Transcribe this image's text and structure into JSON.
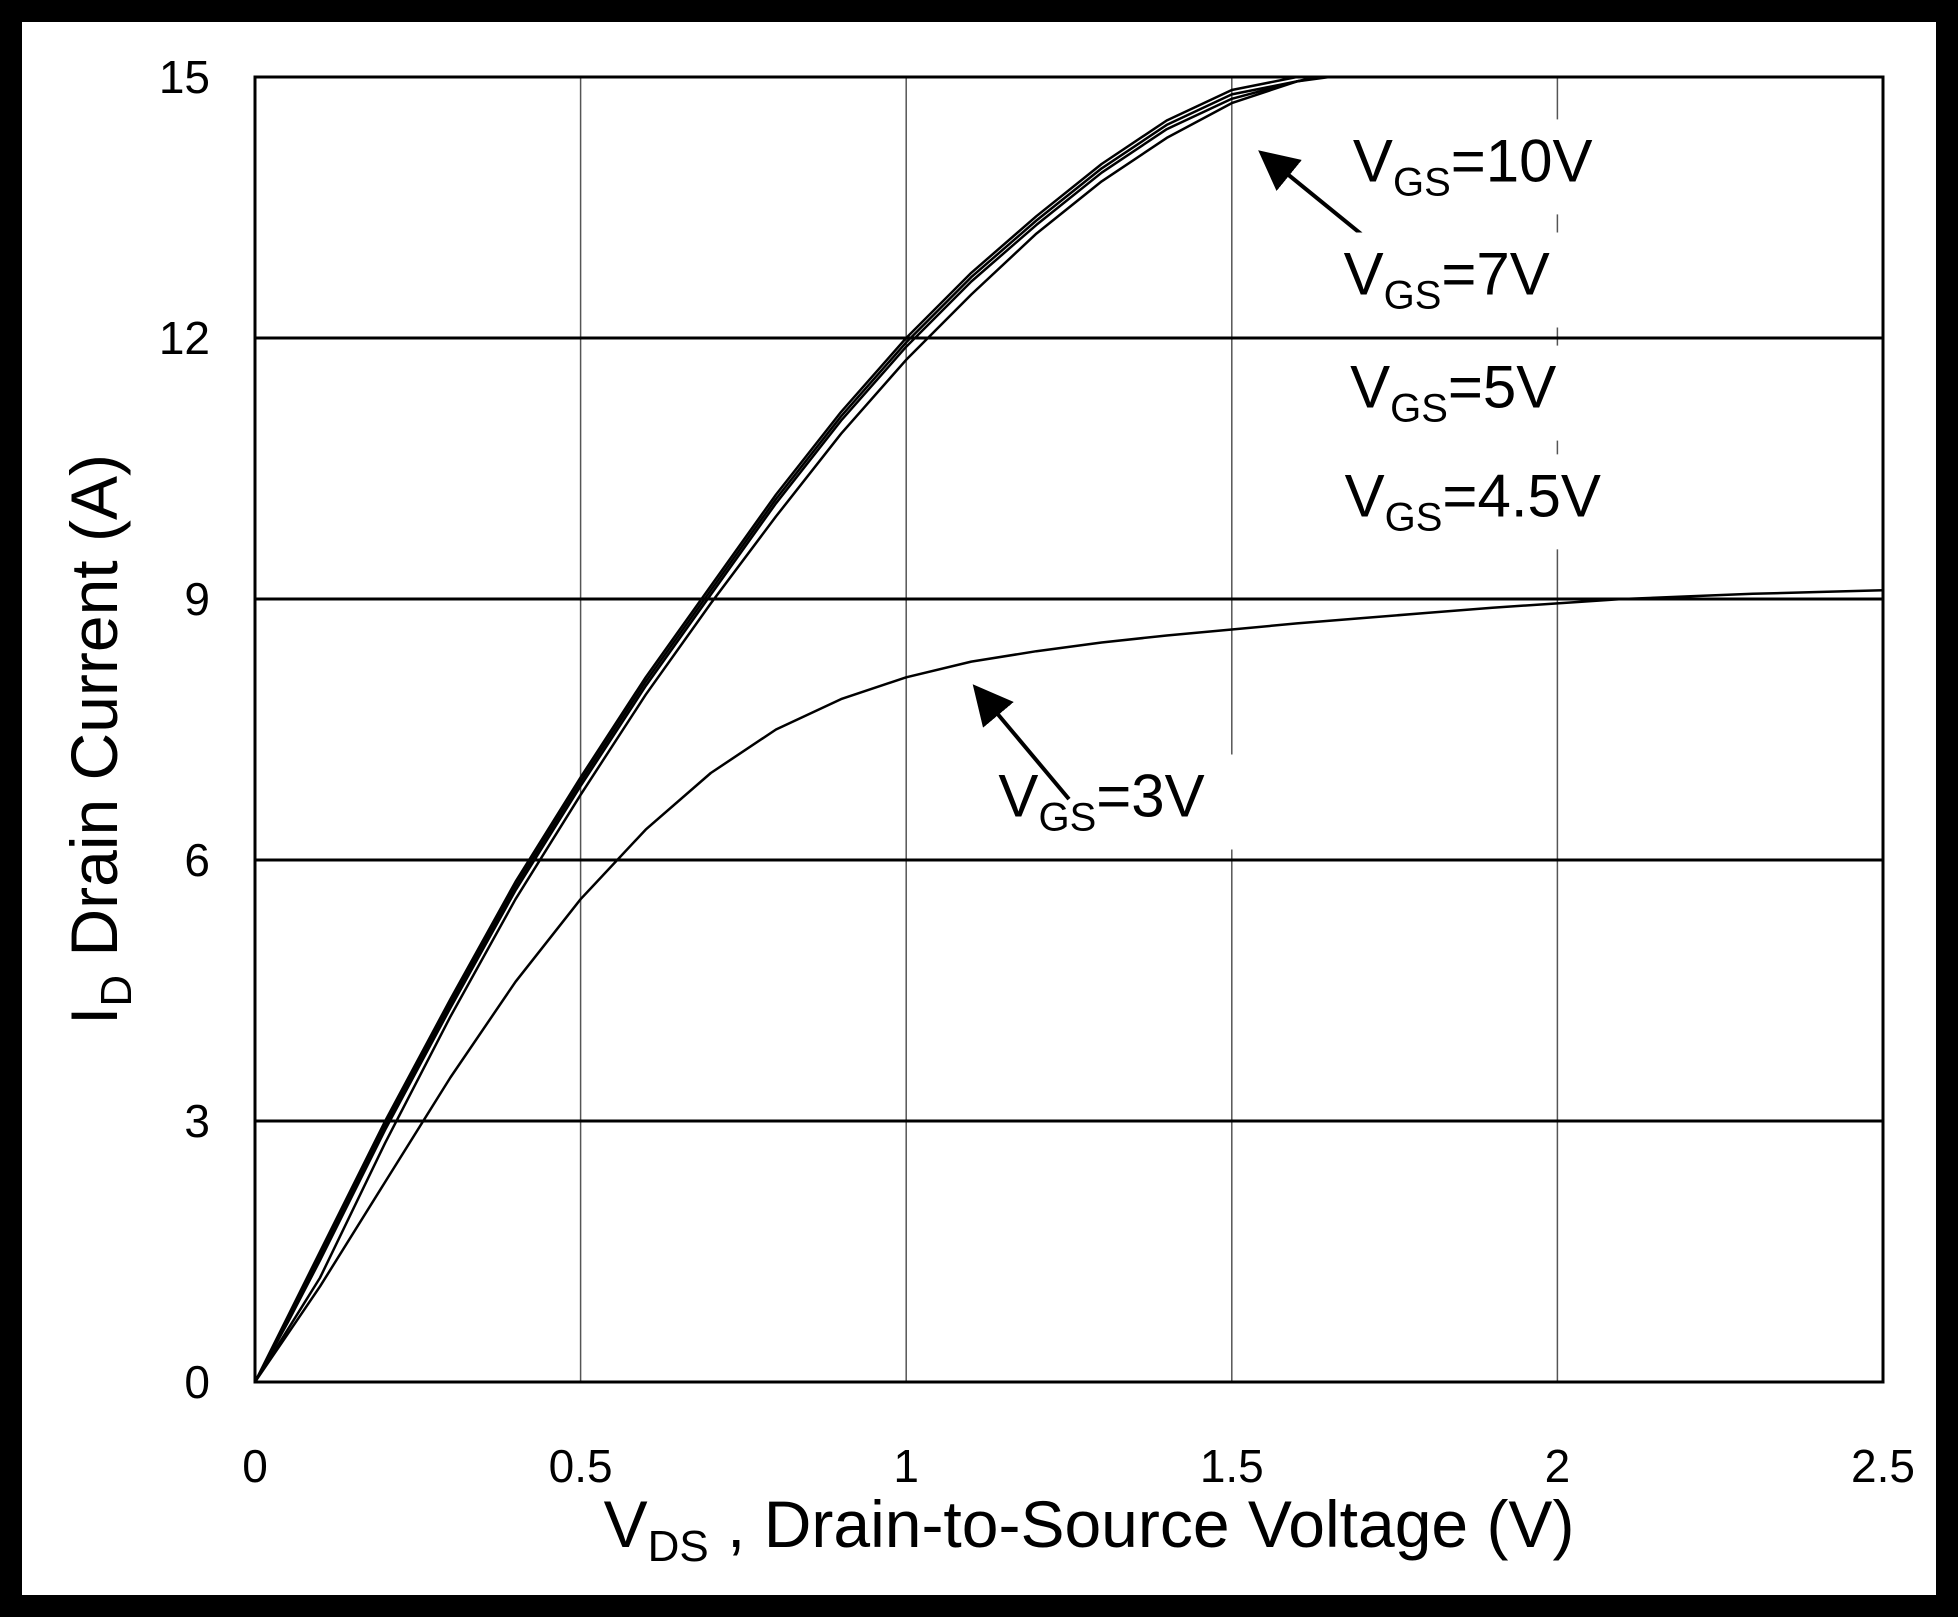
{
  "chart_data": {
    "type": "line",
    "title": "",
    "xlabel": {
      "main": "V",
      "sub": "DS",
      "rest": " , Drain-to-Source Voltage (V)"
    },
    "ylabel": {
      "main": "I",
      "sub": "D",
      "rest": " Drain Current (A)"
    },
    "xlim": [
      0,
      2.5
    ],
    "ylim": [
      0,
      15
    ],
    "x_ticks": [
      0,
      0.5,
      1,
      1.5,
      2,
      2.5
    ],
    "x_tick_labels": [
      "0",
      "0.5",
      "1",
      "1.5",
      "2",
      "2.5"
    ],
    "y_ticks": [
      0,
      3,
      6,
      9,
      12,
      15
    ],
    "y_tick_labels": [
      "0",
      "3",
      "6",
      "9",
      "12",
      "15"
    ],
    "grid": true,
    "series": [
      {
        "name": "VGS=10V",
        "x": [
          0,
          0.05,
          0.1,
          0.2,
          0.3,
          0.4,
          0.5,
          0.6,
          0.7,
          0.8,
          0.9,
          1.0,
          1.1,
          1.2,
          1.3,
          1.4,
          1.5,
          1.6,
          1.65
        ],
        "y": [
          0,
          0.75,
          1.5,
          3.0,
          4.4,
          5.75,
          6.95,
          8.1,
          9.15,
          10.2,
          11.15,
          12.0,
          12.75,
          13.4,
          14.0,
          14.5,
          14.85,
          15.0,
          15.0
        ]
      },
      {
        "name": "VGS=7V",
        "x": [
          0,
          0.05,
          0.1,
          0.2,
          0.3,
          0.4,
          0.5,
          0.6,
          0.7,
          0.8,
          0.9,
          1.0,
          1.1,
          1.2,
          1.3,
          1.4,
          1.5,
          1.6,
          1.64
        ],
        "y": [
          0,
          0.7,
          1.45,
          2.95,
          4.35,
          5.7,
          6.9,
          8.05,
          9.1,
          10.15,
          11.1,
          11.95,
          12.7,
          13.35,
          13.95,
          14.45,
          14.8,
          14.95,
          15.0
        ]
      },
      {
        "name": "VGS=5V",
        "x": [
          0,
          0.05,
          0.1,
          0.2,
          0.3,
          0.4,
          0.5,
          0.6,
          0.7,
          0.8,
          0.9,
          1.0,
          1.1,
          1.2,
          1.3,
          1.4,
          1.5,
          1.6,
          1.63
        ],
        "y": [
          0,
          0.68,
          1.4,
          2.9,
          4.3,
          5.65,
          6.85,
          8.0,
          9.05,
          10.1,
          11.05,
          11.9,
          12.65,
          13.3,
          13.9,
          14.4,
          14.75,
          14.95,
          15.0
        ]
      },
      {
        "name": "VGS=4.5V",
        "x": [
          0,
          0.05,
          0.1,
          0.2,
          0.3,
          0.4,
          0.5,
          0.6,
          0.7,
          0.8,
          0.9,
          1.0,
          1.1,
          1.2,
          1.3,
          1.4,
          1.5,
          1.6,
          1.65
        ],
        "y": [
          0,
          0.6,
          1.2,
          2.75,
          4.2,
          5.55,
          6.75,
          7.9,
          8.95,
          9.95,
          10.9,
          11.75,
          12.5,
          13.2,
          13.8,
          14.3,
          14.7,
          14.95,
          15.0
        ]
      },
      {
        "name": "VGS=3V",
        "x": [
          0,
          0.05,
          0.1,
          0.2,
          0.3,
          0.4,
          0.5,
          0.6,
          0.7,
          0.8,
          0.9,
          1.0,
          1.1,
          1.2,
          1.3,
          1.4,
          1.5,
          1.6,
          1.7,
          1.8,
          1.9,
          2.0,
          2.1,
          2.2,
          2.3,
          2.4,
          2.5
        ],
        "y": [
          0,
          0.55,
          1.1,
          2.3,
          3.5,
          4.6,
          5.55,
          6.35,
          7.0,
          7.5,
          7.85,
          8.1,
          8.28,
          8.4,
          8.5,
          8.58,
          8.65,
          8.72,
          8.78,
          8.84,
          8.9,
          8.95,
          9.0,
          9.03,
          9.06,
          9.08,
          9.1
        ]
      }
    ],
    "annotations": [
      {
        "main": "V",
        "sub": "GS",
        "rest": "=10V",
        "x": 1.87,
        "y": 13.8,
        "arrow": {
          "from": [
            1.78,
            12.7
          ],
          "to": [
            1.55,
            14.1
          ]
        }
      },
      {
        "main": "V",
        "sub": "GS",
        "rest": "=7V",
        "x": 1.83,
        "y": 12.5
      },
      {
        "main": "V",
        "sub": "GS",
        "rest": "=5V",
        "x": 1.84,
        "y": 11.2
      },
      {
        "main": "V",
        "sub": "GS",
        "rest": "=4.5V",
        "x": 1.87,
        "y": 9.95
      },
      {
        "main": "V",
        "sub": "GS",
        "rest": "=3V",
        "x": 1.3,
        "y": 6.5,
        "arrow": {
          "from": [
            1.25,
            6.7
          ],
          "to": [
            1.11,
            7.95
          ]
        }
      }
    ]
  }
}
